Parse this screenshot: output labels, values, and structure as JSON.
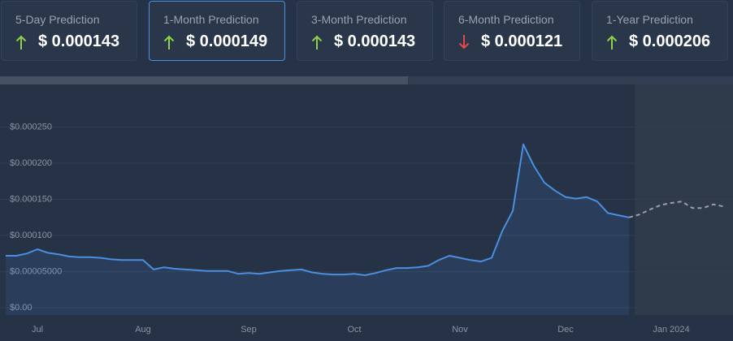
{
  "cards": [
    {
      "label": "5-Day Prediction",
      "value": "$ 0.000143",
      "direction": "up",
      "selected": false
    },
    {
      "label": "1-Month Prediction",
      "value": "$ 0.000149",
      "direction": "up",
      "selected": true
    },
    {
      "label": "3-Month Prediction",
      "value": "$ 0.000143",
      "direction": "up",
      "selected": false
    },
    {
      "label": "6-Month Prediction",
      "value": "$ 0.000121",
      "direction": "down",
      "selected": false
    },
    {
      "label": "1-Year Prediction",
      "value": "$ 0.000206",
      "direction": "up",
      "selected": false
    }
  ],
  "chart_data": {
    "type": "line",
    "categories": [
      null,
      null,
      null,
      "Jul",
      null,
      null,
      null,
      null,
      null,
      null,
      null,
      null,
      null,
      "Aug",
      null,
      null,
      null,
      null,
      null,
      null,
      null,
      null,
      null,
      "Sep",
      null,
      null,
      null,
      null,
      null,
      null,
      null,
      null,
      null,
      "Oct",
      null,
      null,
      null,
      null,
      null,
      null,
      null,
      null,
      null,
      "Nov",
      null,
      null,
      null,
      null,
      null,
      null,
      null,
      null,
      null,
      "Dec",
      null,
      null,
      null,
      null,
      null,
      null,
      null,
      null,
      null,
      "Jan 2024",
      null,
      null,
      null,
      null,
      null
    ],
    "series": [
      {
        "color": "#4a8fe0",
        "style": "solid",
        "fill": true,
        "values": [
          7.2e-05,
          7.2e-05,
          7.5e-05,
          8.1e-05,
          7.6e-05,
          7.4e-05,
          7.1e-05,
          7e-05,
          7e-05,
          6.9e-05,
          6.7e-05,
          6.6e-05,
          6.6e-05,
          6.6e-05,
          5.3e-05,
          5.6e-05,
          5.4e-05,
          5.3e-05,
          5.2e-05,
          5.1e-05,
          5.1e-05,
          5.1e-05,
          4.7e-05,
          4.8e-05,
          4.7e-05,
          4.9e-05,
          5.1e-05,
          5.2e-05,
          5.3e-05,
          4.9e-05,
          4.7e-05,
          4.6e-05,
          4.6e-05,
          4.7e-05,
          4.5e-05,
          4.8e-05,
          5.2e-05,
          5.5e-05,
          5.5e-05,
          5.6e-05,
          5.8e-05,
          6.6e-05,
          7.2e-05,
          6.9e-05,
          6.6e-05,
          6.4e-05,
          6.9e-05,
          0.000106,
          0.000134,
          0.000226,
          0.000196,
          0.000173,
          0.000162,
          0.000153,
          0.000151,
          0.000153,
          0.000147,
          0.000131,
          0.000128,
          0.000125,
          null,
          null,
          null,
          null,
          null,
          null,
          null,
          null,
          null
        ]
      },
      {
        "color": "#9aa0a8",
        "style": "dashed",
        "fill": false,
        "values": [
          null,
          null,
          null,
          null,
          null,
          null,
          null,
          null,
          null,
          null,
          null,
          null,
          null,
          null,
          null,
          null,
          null,
          null,
          null,
          null,
          null,
          null,
          null,
          null,
          null,
          null,
          null,
          null,
          null,
          null,
          null,
          null,
          null,
          null,
          null,
          null,
          null,
          null,
          null,
          null,
          null,
          null,
          null,
          null,
          null,
          null,
          null,
          null,
          null,
          null,
          null,
          null,
          null,
          null,
          null,
          null,
          null,
          null,
          null,
          0.000125,
          0.000129,
          0.000136,
          0.000142,
          0.000145,
          0.000147,
          0.000138,
          0.000138,
          0.000143,
          0.00014
        ]
      }
    ],
    "ylim": [
      -1e-05,
      0.00031
    ],
    "yticks": [
      {
        "value": 0,
        "label": "$0.00"
      },
      {
        "value": 5e-05,
        "label": "$0.00005000"
      },
      {
        "value": 0.0001,
        "label": "$0.000100"
      },
      {
        "value": 0.00015,
        "label": "$0.000150"
      },
      {
        "value": 0.0002,
        "label": "$0.000200"
      },
      {
        "value": 0.00025,
        "label": "$0.000250"
      }
    ],
    "grid": true
  }
}
